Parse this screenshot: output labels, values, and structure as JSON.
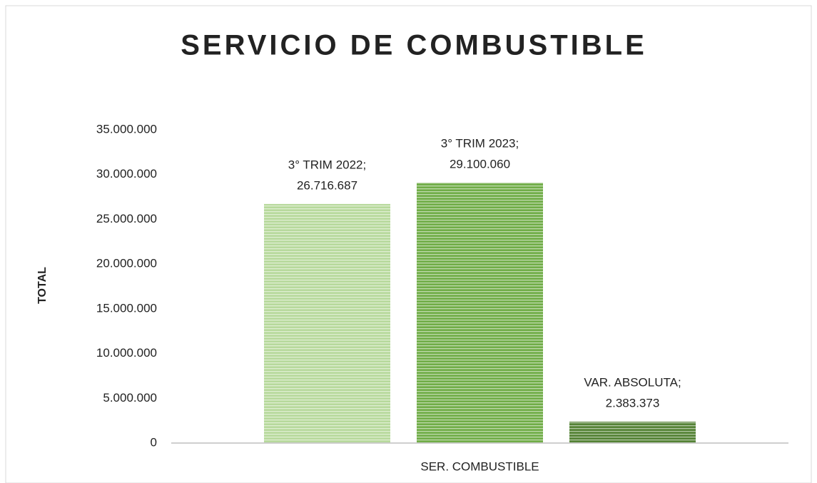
{
  "chart_data": {
    "type": "bar",
    "title": "SERVICIO DE COMBUSTIBLE",
    "y_label": "TOTAL",
    "categories": [
      "SER. COMBUSTIBLE"
    ],
    "series": [
      {
        "name": "3° TRIM 2022;",
        "color": "#b7d99c",
        "values": [
          26716687
        ],
        "value_labels": [
          "26.716.687"
        ]
      },
      {
        "name": "3° TRIM 2023;",
        "color": "#70ad47",
        "values": [
          29100060
        ],
        "value_labels": [
          "29.100.060"
        ]
      },
      {
        "name": "VAR. ABSOLUTA;",
        "color": "#548235",
        "values": [
          2383373
        ],
        "value_labels": [
          "2.383.373"
        ]
      }
    ],
    "ylim": [
      0,
      35000000
    ],
    "yticks": [
      0,
      {
        "value": 5000000,
        "label": "5.000.000"
      },
      {
        "value": 10000000,
        "label": "10.000.000"
      },
      {
        "value": 15000000,
        "label": "15.000.000"
      },
      {
        "value": 20000000,
        "label": "20.000.000"
      },
      {
        "value": 25000000,
        "label": "25.000.000"
      },
      {
        "value": 30000000,
        "label": "30.000.000"
      },
      {
        "value": 35000000,
        "label": "35.000.000"
      }
    ],
    "grid": false
  }
}
